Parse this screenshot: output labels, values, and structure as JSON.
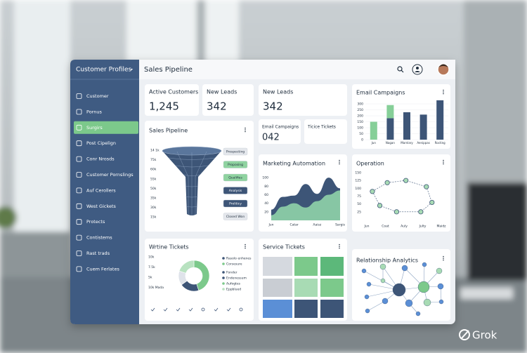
{
  "sidebar": {
    "title": "Customer Profiles",
    "items": [
      "Customer",
      "Pornus",
      "Surgirs",
      "Post Cipelign",
      "Conr Nrosds",
      "Customer Pornslings",
      "Auf Cerollers",
      "West Gickets",
      "Protects",
      "Contistems",
      "Rast trads",
      "Cuem Ferlates"
    ],
    "active": 2
  },
  "header": {
    "title": "Sales Pipeline"
  },
  "kpis": [
    {
      "label": "Active Customers",
      "value": "1,245"
    },
    {
      "label": "New Leads",
      "value": "342"
    },
    {
      "label": "New Leads",
      "value": "342"
    }
  ],
  "mini_cards": [
    {
      "label": "Email Campaigns",
      "value": "042"
    },
    {
      "label": "Ticice Tickets"
    }
  ],
  "email_campaigns": {
    "type": "bar",
    "title": "Email Campaigns",
    "categories": [
      "Jun",
      "Nagan",
      "Marnlary",
      "Aenippas",
      "Rocting"
    ],
    "series": [
      {
        "color": "#3d5577",
        "values": [
          0,
          180,
          230,
          210,
          330
        ]
      },
      {
        "color": "#86cf98",
        "values": [
          150,
          110,
          0,
          0,
          0
        ]
      }
    ],
    "ylim": [
      0,
      350
    ],
    "yticks": [
      0,
      50,
      100,
      150,
      200,
      250,
      300
    ],
    "grid": true
  },
  "funnel": {
    "title": "Sales Pipeline",
    "axis_labels": [
      "14 1k",
      "75k",
      "60k",
      "55k",
      "50k",
      "35k",
      "30k",
      "15k"
    ],
    "stages": [
      {
        "label": "Prospecting",
        "color": "#e4e7ec",
        "text_color": "#1f2d3d"
      },
      {
        "label": "Proposing",
        "color": "#8fd3a0",
        "text_color": "#1f2d3d"
      },
      {
        "label": "Qualifies",
        "color": "#8fd3a0",
        "text_color": "#1f2d3d"
      },
      {
        "label": "Analysis",
        "color": "#3d5577",
        "text_color": "#ffffff"
      },
      {
        "label": "Proliticy",
        "color": "#3d5577",
        "text_color": "#ffffff"
      },
      {
        "label": "Closed Won",
        "color": "#e4e7ec",
        "text_color": "#1f2d3d"
      }
    ]
  },
  "marketing": {
    "type": "area",
    "title": "Marketing Automation",
    "categories": [
      "Jun",
      null,
      "Catar",
      null,
      "Aaisz",
      null,
      "Sargis"
    ],
    "series": [
      {
        "color": "#3d5577",
        "values": [
          25,
          55,
          58,
          85,
          62,
          100,
          75
        ]
      },
      {
        "color": "#8fd3a8",
        "values": [
          12,
          32,
          40,
          30,
          45,
          60,
          70
        ]
      }
    ],
    "ylim": [
      0,
      120
    ],
    "yticks": [
      20,
      40,
      60,
      80,
      100
    ]
  },
  "operation": {
    "type": "scatter",
    "title": "Operation",
    "x": [
      0.3,
      0.7,
      1.6,
      2.9,
      3.5,
      3.2,
      2.1,
      1.1
    ],
    "values": [
      90,
      45,
      25,
      25,
      55,
      105,
      125,
      118
    ],
    "color": "#a8dbb4",
    "xlim": [
      0,
      4
    ],
    "xticks": [
      {
        "value": 0,
        "label": "Jun"
      },
      {
        "value": 1,
        "label": "Coat"
      },
      {
        "value": 2,
        "label": "Auly"
      },
      {
        "value": 3,
        "label": "Julty"
      },
      {
        "value": 4,
        "label": "Maidz"
      }
    ],
    "ylim": [
      0,
      150
    ],
    "yticks": [
      25,
      50,
      75,
      100,
      125,
      150
    ]
  },
  "tickets": {
    "type": "donut",
    "title": "Wrtine Tickets",
    "axis_labels": [
      "10k",
      "7.5k",
      "5k",
      "10k Mada"
    ],
    "values": [
      45,
      20,
      15,
      20
    ],
    "colors": [
      "#7cc98b",
      "#3d5577",
      "#dfe3ea",
      "#b8e2c0"
    ],
    "legend": [
      {
        "label": "Rasolo enhenes",
        "color": "#3d5577"
      },
      {
        "label": "Corsesure",
        "color": "#7cc98b"
      },
      {
        "label": "Fonder",
        "color": "#3d5577"
      },
      {
        "label": "Endenessum",
        "color": "#3d5577"
      },
      {
        "label": "Aufogtes",
        "color": "#7cc98b"
      },
      {
        "label": "Eppblued",
        "color": "#b8e2c0"
      }
    ]
  },
  "service": {
    "title": "Service Tickets"
  },
  "relationship": {
    "title": "Relationship Analytics"
  },
  "watermark": "Grok"
}
